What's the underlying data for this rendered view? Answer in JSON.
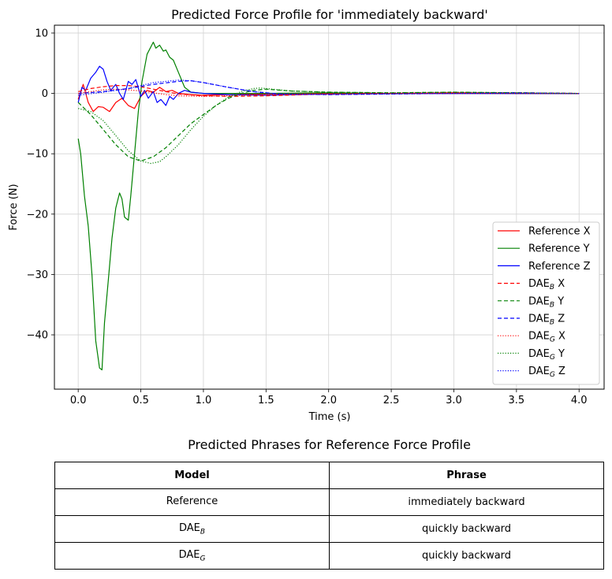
{
  "chart_data": {
    "type": "line",
    "title": "Predicted Force Profile for 'immediately backward'",
    "xlabel": "Time (s)",
    "ylabel": "Force (N)",
    "xlim": [
      -0.19,
      4.2
    ],
    "ylim": [
      -49.0,
      11.3
    ],
    "xticks": [
      0.0,
      0.5,
      1.0,
      1.5,
      2.0,
      2.5,
      3.0,
      3.5,
      4.0
    ],
    "xtick_labels": [
      "0.0",
      "0.5",
      "1.0",
      "1.5",
      "2.0",
      "2.5",
      "3.0",
      "3.5",
      "4.0"
    ],
    "yticks": [
      10,
      0,
      -10,
      -20,
      -30,
      -40
    ],
    "ytick_labels": [
      "10",
      "0",
      "−10",
      "−20",
      "−30",
      "−40"
    ],
    "grid": true,
    "legend_position": "lower-right",
    "series": [
      {
        "name": "Reference X",
        "color": "#ff0000",
        "style": "solid",
        "x": [
          0.0,
          0.04,
          0.08,
          0.12,
          0.16,
          0.2,
          0.25,
          0.3,
          0.35,
          0.4,
          0.45,
          0.5,
          0.55,
          0.6,
          0.65,
          0.7,
          0.75,
          0.8,
          0.9,
          1.0,
          1.2,
          1.5,
          2.0,
          2.5,
          3.0,
          3.5,
          4.0
        ],
        "y": [
          -1.0,
          1.5,
          -1.5,
          -3.0,
          -2.2,
          -2.3,
          -3.0,
          -1.5,
          -0.8,
          -2.0,
          -2.5,
          -0.5,
          0.5,
          0.2,
          1.0,
          0.3,
          0.5,
          0.0,
          -0.2,
          -0.3,
          -0.2,
          -0.1,
          0.0,
          0.0,
          0.1,
          0.0,
          0.0
        ]
      },
      {
        "name": "Reference Y",
        "color": "#008000",
        "style": "solid",
        "x": [
          0.0,
          0.02,
          0.05,
          0.08,
          0.11,
          0.14,
          0.17,
          0.19,
          0.21,
          0.24,
          0.27,
          0.3,
          0.33,
          0.35,
          0.37,
          0.4,
          0.42,
          0.45,
          0.48,
          0.51,
          0.55,
          0.6,
          0.62,
          0.65,
          0.68,
          0.7,
          0.73,
          0.76,
          0.8,
          0.85,
          0.9,
          1.0,
          1.2,
          1.5,
          2.0,
          2.5,
          3.0,
          3.5,
          4.0
        ],
        "y": [
          -7.5,
          -10.0,
          -17.0,
          -22.0,
          -30.0,
          -41.0,
          -45.5,
          -45.8,
          -38.0,
          -31.0,
          -24.0,
          -19.0,
          -16.5,
          -17.5,
          -20.5,
          -21.0,
          -17.0,
          -10.0,
          -3.0,
          2.0,
          6.5,
          8.5,
          7.5,
          8.0,
          7.0,
          7.2,
          6.0,
          5.5,
          3.5,
          1.0,
          0.2,
          0.0,
          0.0,
          0.0,
          0.1,
          0.0,
          0.0,
          0.0,
          0.0
        ]
      },
      {
        "name": "Reference Z",
        "color": "#0000ff",
        "style": "solid",
        "x": [
          0.0,
          0.03,
          0.06,
          0.1,
          0.14,
          0.17,
          0.2,
          0.23,
          0.26,
          0.3,
          0.33,
          0.36,
          0.4,
          0.43,
          0.46,
          0.5,
          0.53,
          0.56,
          0.6,
          0.63,
          0.66,
          0.7,
          0.73,
          0.76,
          0.8,
          0.85,
          0.9,
          1.0,
          1.2,
          1.5,
          2.0,
          2.5,
          3.0,
          3.5,
          4.0
        ],
        "y": [
          -1.5,
          1.0,
          0.5,
          2.5,
          3.5,
          4.5,
          4.0,
          2.0,
          0.5,
          1.5,
          0.0,
          -1.0,
          2.0,
          1.5,
          2.3,
          -0.5,
          0.5,
          -0.8,
          0.3,
          -1.5,
          -1.0,
          -2.0,
          -0.5,
          -1.0,
          0.0,
          0.5,
          0.2,
          0.0,
          -0.2,
          -0.3,
          -0.1,
          0.0,
          0.0,
          0.0,
          0.0
        ]
      },
      {
        "name": "DAE_B X",
        "color": "#ff0000",
        "style": "dashed",
        "x": [
          0.0,
          0.1,
          0.2,
          0.3,
          0.4,
          0.5,
          0.6,
          0.7,
          0.8,
          1.0,
          1.2,
          1.5,
          2.0,
          2.5,
          3.0,
          3.5,
          4.0
        ],
        "y": [
          0.3,
          0.8,
          1.1,
          1.3,
          1.3,
          1.1,
          0.7,
          0.3,
          -0.1,
          -0.4,
          -0.5,
          -0.4,
          -0.1,
          0.0,
          0.1,
          0.1,
          0.0
        ]
      },
      {
        "name": "DAE_B Y",
        "color": "#008000",
        "style": "dashed",
        "x": [
          0.0,
          0.1,
          0.2,
          0.3,
          0.4,
          0.5,
          0.6,
          0.7,
          0.8,
          0.9,
          1.0,
          1.1,
          1.2,
          1.3,
          1.4,
          1.5,
          1.7,
          2.0,
          2.5,
          3.0,
          3.5,
          4.0
        ],
        "y": [
          -1.5,
          -3.5,
          -6.0,
          -8.5,
          -10.5,
          -11.2,
          -10.5,
          -9.0,
          -7.0,
          -5.0,
          -3.5,
          -2.0,
          -0.8,
          0.0,
          0.5,
          0.7,
          0.4,
          0.2,
          0.1,
          0.2,
          0.1,
          0.0
        ]
      },
      {
        "name": "DAE_B Z",
        "color": "#0000ff",
        "style": "dashed",
        "x": [
          0.0,
          0.2,
          0.4,
          0.6,
          0.8,
          0.9,
          1.0,
          1.2,
          1.4,
          1.6,
          2.0,
          2.5,
          3.0,
          3.5,
          4.0
        ],
        "y": [
          0.0,
          0.3,
          0.8,
          1.5,
          2.0,
          2.1,
          1.8,
          1.0,
          0.3,
          -0.1,
          -0.2,
          -0.1,
          0.0,
          0.1,
          0.0
        ]
      },
      {
        "name": "DAE_G X",
        "color": "#ff0000",
        "style": "dotted",
        "x": [
          0.0,
          0.1,
          0.2,
          0.3,
          0.4,
          0.5,
          0.6,
          0.7,
          0.8,
          1.0,
          1.2,
          1.5,
          2.0,
          2.5,
          3.0,
          3.5,
          4.0
        ],
        "y": [
          0.0,
          0.3,
          0.6,
          0.7,
          0.6,
          0.4,
          0.1,
          -0.2,
          -0.4,
          -0.5,
          -0.4,
          -0.2,
          -0.1,
          0.0,
          0.0,
          0.0,
          0.0
        ]
      },
      {
        "name": "DAE_G Y",
        "color": "#008000",
        "style": "dotted",
        "x": [
          0.0,
          0.1,
          0.2,
          0.3,
          0.4,
          0.5,
          0.58,
          0.65,
          0.7,
          0.8,
          0.9,
          1.0,
          1.1,
          1.2,
          1.3,
          1.4,
          1.45,
          1.5,
          1.7,
          2.0,
          2.5,
          3.0,
          3.5,
          4.0
        ],
        "y": [
          -2.5,
          -3.0,
          -4.5,
          -7.0,
          -9.5,
          -11.2,
          -11.6,
          -11.3,
          -10.5,
          -8.5,
          -6.0,
          -3.8,
          -2.0,
          -0.6,
          0.3,
          0.8,
          0.9,
          0.8,
          0.4,
          0.2,
          0.1,
          0.2,
          0.1,
          0.0
        ]
      },
      {
        "name": "DAE_G Z",
        "color": "#0000ff",
        "style": "dotted",
        "x": [
          0.0,
          0.2,
          0.4,
          0.5,
          0.6,
          0.7,
          0.8,
          0.9,
          1.0,
          1.2,
          1.4,
          1.6,
          2.0,
          2.5,
          3.0,
          3.5,
          4.0
        ],
        "y": [
          -0.3,
          0.2,
          0.8,
          1.3,
          1.8,
          2.0,
          2.2,
          2.1,
          1.8,
          1.0,
          0.3,
          -0.1,
          -0.2,
          -0.1,
          0.0,
          0.0,
          0.0
        ]
      }
    ],
    "legend": [
      {
        "base": "Reference",
        "sub": "",
        "axis": "X",
        "color": "#ff0000",
        "style": "solid"
      },
      {
        "base": "Reference",
        "sub": "",
        "axis": "Y",
        "color": "#008000",
        "style": "solid"
      },
      {
        "base": "Reference",
        "sub": "",
        "axis": "Z",
        "color": "#0000ff",
        "style": "solid"
      },
      {
        "base": "DAE",
        "sub": "B",
        "axis": "X",
        "color": "#ff0000",
        "style": "dashed"
      },
      {
        "base": "DAE",
        "sub": "B",
        "axis": "Y",
        "color": "#008000",
        "style": "dashed"
      },
      {
        "base": "DAE",
        "sub": "B",
        "axis": "Z",
        "color": "#0000ff",
        "style": "dashed"
      },
      {
        "base": "DAE",
        "sub": "G",
        "axis": "X",
        "color": "#ff0000",
        "style": "dotted"
      },
      {
        "base": "DAE",
        "sub": "G",
        "axis": "Y",
        "color": "#008000",
        "style": "dotted"
      },
      {
        "base": "DAE",
        "sub": "G",
        "axis": "Z",
        "color": "#0000ff",
        "style": "dotted"
      }
    ]
  },
  "table": {
    "title": "Predicted Phrases for Reference Force Profile",
    "headers": {
      "model": "Model",
      "phrase": "Phrase"
    },
    "rows": [
      {
        "model": "Reference",
        "model_sub": "",
        "phrase": "immediately backward"
      },
      {
        "model": "DAE",
        "model_sub": "B",
        "phrase": "quickly backward"
      },
      {
        "model": "DAE",
        "model_sub": "G",
        "phrase": "quickly  backward"
      }
    ]
  }
}
